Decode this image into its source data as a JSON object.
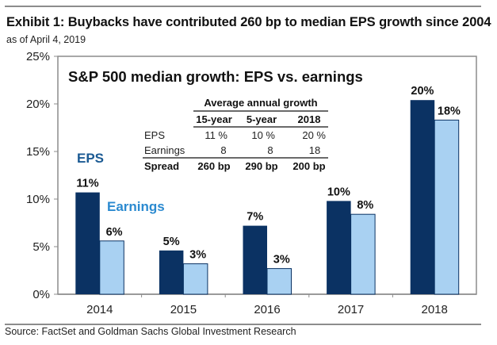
{
  "header": {
    "title": "Exhibit 1: Buybacks have contributed 260 bp to median EPS growth since 2004",
    "subtitle": "as of April 4, 2019"
  },
  "footer": {
    "source": "Source:  FactSet and Goldman Sachs Global Investment Research"
  },
  "colors": {
    "eps": "#0b3263",
    "earnings": "#a9d1f2",
    "eps_label": "#1b5a93",
    "earnings_label": "#2b8ad0",
    "axis": "#8c8c8c"
  },
  "chart_data": {
    "type": "bar",
    "title": "S&P 500 median growth: EPS vs. earnings",
    "xlabel": "",
    "ylabel": "",
    "categories": [
      "2014",
      "2015",
      "2016",
      "2017",
      "2018"
    ],
    "series": [
      {
        "name": "EPS",
        "values": [
          10.7,
          4.6,
          7.2,
          9.8,
          20.4
        ],
        "labels": [
          "11%",
          "5%",
          "7%",
          "10%",
          "20%"
        ]
      },
      {
        "name": "Earnings",
        "values": [
          5.6,
          3.2,
          2.7,
          8.4,
          18.3
        ],
        "labels": [
          "6%",
          "3%",
          "3%",
          "8%",
          "18%"
        ]
      }
    ],
    "ylim": [
      0,
      25
    ],
    "yticks": [
      0,
      5,
      10,
      15,
      20,
      25
    ],
    "ytick_labels": [
      "0%",
      "5%",
      "10%",
      "15%",
      "20%",
      "25%"
    ],
    "grid": false,
    "legend": {
      "type": "inline-labels",
      "placement": "left",
      "entries": [
        "EPS",
        "Earnings"
      ]
    },
    "inset_table": {
      "title": "Average annual growth",
      "columns": [
        "",
        "15-year",
        "5-year",
        "2018"
      ],
      "rows": [
        [
          "EPS",
          "11 %",
          "10 %",
          "20 %"
        ],
        [
          "Earnings",
          "8",
          "8",
          "18"
        ],
        [
          "Spread",
          "260 bp",
          "290 bp",
          "200 bp"
        ]
      ]
    }
  }
}
